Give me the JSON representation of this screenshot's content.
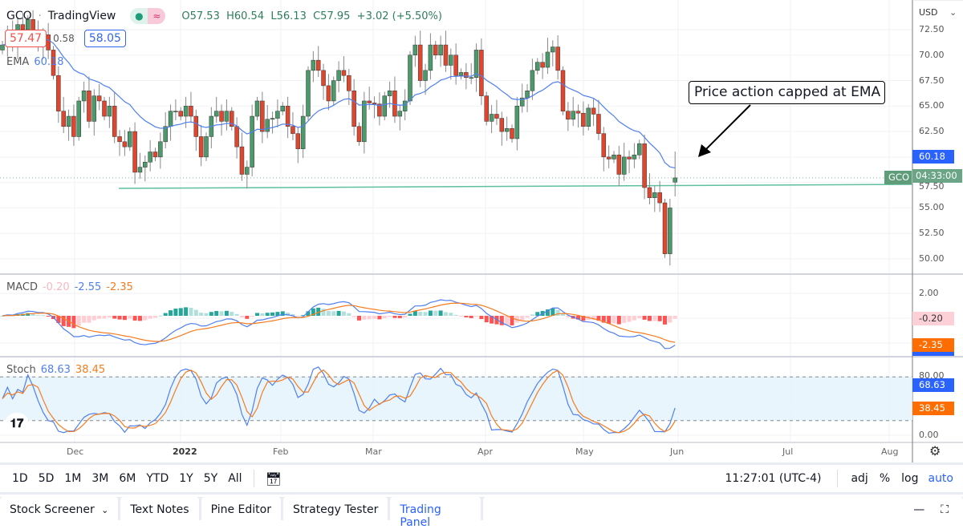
{
  "header": {
    "symbol": "GCO",
    "source": "TradingView",
    "open": "O57.53",
    "high": "H60.54",
    "low": "L56.13",
    "close": "C57.95",
    "change": "+3.02 (+5.50%)",
    "bid": "57.47",
    "spread": "0.58",
    "ask": "58.05",
    "ema_label": "EMA",
    "ema_value": "60.18"
  },
  "colors": {
    "up": "#4c9a6b",
    "down": "#e0452d",
    "ema": "#4f7ff0",
    "macd": "#4f7ff0",
    "signal": "#f57c1f",
    "support": "#5fbf9f"
  },
  "price_axis": {
    "currency": "USD",
    "ticks": [
      "72.50",
      "70.00",
      "67.50",
      "65.00",
      "62.50",
      "57.50",
      "55.00",
      "52.50",
      "50.00"
    ],
    "ema_tag": "60.18",
    "symbol_tag": "GCO",
    "countdown": "04:33:00"
  },
  "macd": {
    "label": "MACD",
    "hist": "-0.20",
    "macd": "-2.55",
    "signal": "-2.35",
    "ticks": [
      "2.00"
    ],
    "hist_tag": "-0.20",
    "signal_tag": "-2.35"
  },
  "stoch": {
    "label": "Stoch",
    "k": "68.63",
    "d": "38.45",
    "ticks": [
      "80.00",
      "0.00"
    ],
    "k_tag": "68.63",
    "d_tag": "38.45"
  },
  "time_axis": [
    "Dec",
    "2022",
    "Feb",
    "Mar",
    "Apr",
    "May",
    "Jun",
    "Jul",
    "Aug"
  ],
  "annotation": "Price action capped at EMA",
  "toolbar": {
    "ranges": [
      "1D",
      "5D",
      "1M",
      "3M",
      "6M",
      "YTD",
      "1Y",
      "5Y",
      "All"
    ],
    "clock": "11:27:01 (UTC-4)",
    "adj": "adj",
    "pct": "%",
    "log": "log",
    "auto": "auto"
  },
  "tabs": [
    "Stock Screener",
    "Text Notes",
    "Pine Editor",
    "Strategy Tester",
    "Trading Panel"
  ],
  "chart_data": {
    "type": "candlestick",
    "last": {
      "o": 57.53,
      "h": 60.54,
      "l": 56.13,
      "c": 57.95
    },
    "closes": [
      71,
      72,
      71,
      73,
      72.5,
      73.5,
      72,
      71,
      72,
      70.5,
      68,
      64.5,
      63,
      64,
      62,
      65.5,
      66.5,
      63.5,
      66,
      65.5,
      64,
      65,
      62,
      61.5,
      61,
      62.5,
      58.5,
      59,
      59.5,
      60.5,
      60,
      61.5,
      63,
      64.5,
      64.5,
      64,
      65,
      64,
      62,
      60,
      62,
      64,
      64.5,
      63.5,
      64.5,
      63,
      61,
      58.3,
      59,
      64,
      65.5,
      62.5,
      63.7,
      63.8,
      64.5,
      65,
      63,
      62.3,
      60.8,
      64,
      68.5,
      69.5,
      68.5,
      67,
      65.5,
      67.5,
      68.5,
      68,
      66.5,
      63,
      61.5,
      65.5,
      65.3,
      65.2,
      64,
      66,
      66.5,
      64,
      64.5,
      65.5,
      70,
      71,
      67.5,
      68.5,
      71,
      70,
      71,
      69,
      70,
      68,
      68.3,
      67.8,
      67.8,
      70.5,
      66,
      63.5,
      64.2,
      63.8,
      62.5,
      62.8,
      61.8,
      65,
      65.8,
      66.5,
      68.5,
      69.3,
      68.8,
      70.3,
      70.8,
      68.5,
      64.5,
      63.7,
      64.5,
      64.3,
      63,
      64.8,
      64.2,
      62.3,
      60,
      59.8,
      60.2,
      58.3,
      60,
      59.8,
      60.2,
      61.3,
      57,
      56,
      56.5,
      55.5,
      50.5,
      55,
      57.95
    ],
    "support_level": 56.9
  }
}
